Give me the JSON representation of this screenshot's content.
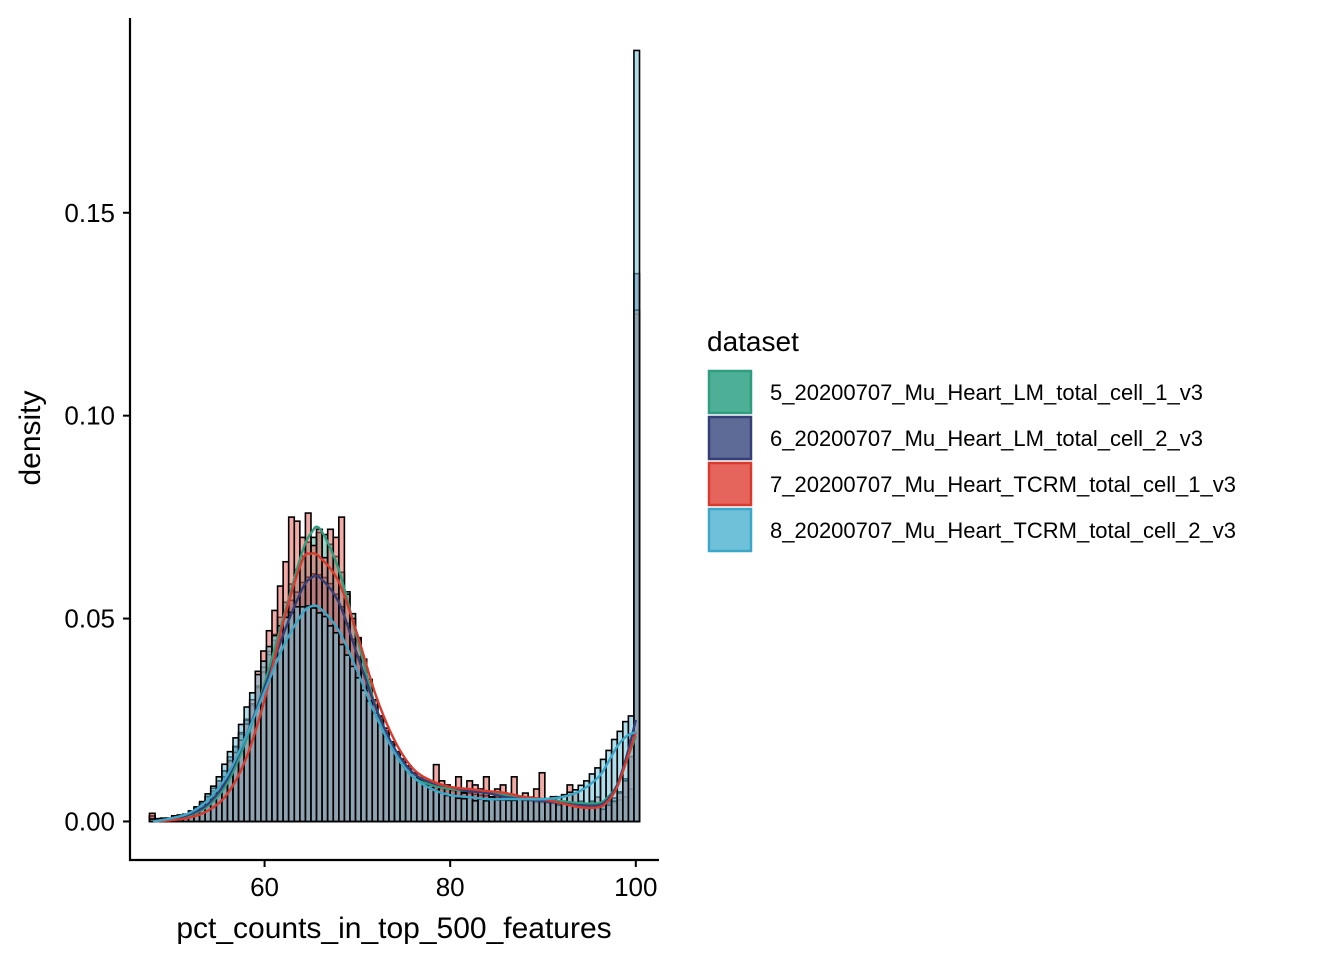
{
  "chart_data": {
    "type": "histogram",
    "title": "",
    "xlabel": "pct_counts_in_top_500_features",
    "ylabel": "density",
    "xlim": [
      45.5,
      102.5
    ],
    "ylim": [
      -0.0095,
      0.198
    ],
    "grid": false,
    "x_ticks": [
      60,
      80,
      100
    ],
    "x_tick_labels": [
      "60",
      "80",
      "100"
    ],
    "y_ticks": [
      0.0,
      0.05,
      0.1,
      0.15
    ],
    "y_tick_labels": [
      "0.00",
      "0.05",
      "0.10",
      "0.15"
    ],
    "legend": {
      "title": "dataset",
      "position": "right"
    },
    "bin_edges": [
      47.6,
      48.2,
      48.8,
      49.4,
      50.0,
      50.6,
      51.2,
      51.8,
      52.4,
      53.0,
      53.6,
      54.2,
      54.8,
      55.4,
      56.0,
      56.6,
      57.2,
      57.8,
      58.4,
      59.0,
      59.6,
      60.2,
      60.8,
      61.4,
      62.0,
      62.6,
      63.2,
      63.8,
      64.4,
      65.0,
      65.6,
      66.2,
      66.8,
      67.4,
      68.0,
      68.6,
      69.2,
      69.8,
      70.4,
      71.0,
      71.6,
      72.2,
      72.8,
      73.4,
      74.0,
      74.6,
      75.2,
      75.8,
      76.4,
      77.0,
      77.6,
      78.2,
      78.8,
      79.4,
      80.0,
      80.6,
      81.2,
      81.8,
      82.4,
      83.0,
      83.6,
      84.2,
      84.8,
      85.4,
      86.0,
      86.6,
      87.2,
      87.8,
      88.4,
      89.0,
      89.6,
      90.2,
      90.8,
      91.4,
      92.0,
      92.6,
      93.2,
      93.8,
      94.4,
      95.0,
      95.6,
      96.2,
      96.8,
      97.4,
      98.0,
      98.6,
      99.2,
      99.8,
      100.4
    ],
    "series": [
      {
        "name": "5_20200707_Mu_Heart_LM_total_cell_1_v3",
        "color": "#4DAF96",
        "line_color": "#2E9E7E",
        "densities": [
          0.0014,
          0.0006,
          0.0006,
          0.0006,
          0.0012,
          0.0015,
          0.0016,
          0.0023,
          0.0032,
          0.0043,
          0.006,
          0.0075,
          0.0099,
          0.0125,
          0.0147,
          0.0183,
          0.0215,
          0.0252,
          0.0286,
          0.0334,
          0.038,
          0.0419,
          0.0461,
          0.0503,
          0.054,
          0.0585,
          0.0621,
          0.0654,
          0.0688,
          0.07,
          0.0712,
          0.0707,
          0.0683,
          0.0653,
          0.0614,
          0.0566,
          0.0512,
          0.0453,
          0.0398,
          0.0343,
          0.0297,
          0.0256,
          0.0224,
          0.0191,
          0.0166,
          0.0146,
          0.0129,
          0.0114,
          0.0102,
          0.0096,
          0.0089,
          0.0085,
          0.0081,
          0.008,
          0.0077,
          0.0076,
          0.0072,
          0.0069,
          0.0067,
          0.0065,
          0.0064,
          0.0061,
          0.006,
          0.006,
          0.0055,
          0.0057,
          0.0054,
          0.0056,
          0.0056,
          0.0052,
          0.005,
          0.0051,
          0.005,
          0.005,
          0.0047,
          0.0045,
          0.0046,
          0.0041,
          0.0044,
          0.0047,
          0.0046,
          0.0045,
          0.0045,
          0.0048,
          0.0053,
          0.006,
          0.008,
          0.125
        ],
        "curve_x": [
          48,
          50,
          52,
          54,
          56,
          58,
          60,
          62,
          64,
          65,
          66,
          68,
          70,
          72,
          74,
          76,
          78,
          80,
          82,
          84,
          86,
          88,
          90,
          92,
          94,
          96,
          97,
          98,
          99,
          100
        ],
        "curve_y": [
          0.0,
          0.0005,
          0.0016,
          0.004,
          0.0095,
          0.02,
          0.034,
          0.05,
          0.066,
          0.071,
          0.072,
          0.062,
          0.045,
          0.028,
          0.017,
          0.011,
          0.009,
          0.008,
          0.0075,
          0.007,
          0.0065,
          0.006,
          0.0055,
          0.005,
          0.0045,
          0.0045,
          0.006,
          0.009,
          0.015,
          0.021
        ]
      },
      {
        "name": "6_20200707_Mu_Heart_LM_total_cell_2_v3",
        "color": "#5E6B96",
        "line_color": "#343F77",
        "densities": [
          0.0013,
          0.0006,
          0.0008,
          0.0008,
          0.0013,
          0.0015,
          0.0016,
          0.0024,
          0.0033,
          0.0045,
          0.0062,
          0.0082,
          0.01,
          0.0124,
          0.0159,
          0.0185,
          0.0219,
          0.0249,
          0.029,
          0.033,
          0.0368,
          0.0411,
          0.0446,
          0.048,
          0.0517,
          0.0545,
          0.0565,
          0.0589,
          0.0602,
          0.061,
          0.0608,
          0.0601,
          0.0586,
          0.056,
          0.0529,
          0.0488,
          0.0449,
          0.0406,
          0.0365,
          0.0322,
          0.0287,
          0.0251,
          0.022,
          0.0191,
          0.017,
          0.0149,
          0.0134,
          0.0117,
          0.0107,
          0.0099,
          0.0091,
          0.0089,
          0.0085,
          0.008,
          0.0076,
          0.0077,
          0.0072,
          0.0071,
          0.0067,
          0.0064,
          0.0063,
          0.006,
          0.0056,
          0.0058,
          0.0053,
          0.0054,
          0.0055,
          0.0051,
          0.005,
          0.0047,
          0.0046,
          0.0045,
          0.0044,
          0.0042,
          0.0044,
          0.0039,
          0.0042,
          0.0041,
          0.0038,
          0.0038,
          0.004,
          0.0044,
          0.005,
          0.0058,
          0.0073,
          0.0105,
          0.016,
          0.135
        ],
        "curve_x": [
          48,
          50,
          52,
          54,
          56,
          58,
          60,
          62,
          64,
          65,
          66,
          68,
          70,
          72,
          74,
          76,
          78,
          80,
          82,
          84,
          86,
          88,
          90,
          92,
          94,
          96,
          97,
          98,
          99,
          100
        ],
        "curve_y": [
          0.0,
          0.0006,
          0.0018,
          0.0045,
          0.0105,
          0.021,
          0.033,
          0.046,
          0.057,
          0.06,
          0.06,
          0.054,
          0.041,
          0.028,
          0.018,
          0.012,
          0.0095,
          0.0085,
          0.0075,
          0.007,
          0.006,
          0.0055,
          0.005,
          0.0045,
          0.004,
          0.004,
          0.0055,
          0.009,
          0.016,
          0.025
        ]
      },
      {
        "name": "7_20200707_Mu_Heart_TCRM_total_cell_1_v3",
        "color": "#E5645B",
        "line_color": "#D93A2E",
        "densities": [
          0.002,
          0.0,
          0.0,
          0.0,
          0.0006,
          0.0,
          0.001,
          0.0016,
          0.002,
          0.003,
          0.004,
          0.006,
          0.01,
          0.011,
          0.015,
          0.017,
          0.02,
          0.024,
          0.03,
          0.037,
          0.042,
          0.047,
          0.052,
          0.058,
          0.064,
          0.075,
          0.074,
          0.07,
          0.076,
          0.068,
          0.072,
          0.065,
          0.072,
          0.07,
          0.075,
          0.056,
          0.05,
          0.045,
          0.04,
          0.035,
          0.03,
          0.026,
          0.023,
          0.019,
          0.017,
          0.015,
          0.013,
          0.012,
          0.01,
          0.009,
          0.008,
          0.014,
          0.01,
          0.009,
          0.008,
          0.011,
          0.007,
          0.01,
          0.009,
          0.008,
          0.011,
          0.006,
          0.008,
          0.009,
          0.006,
          0.011,
          0.006,
          0.007,
          0.006,
          0.008,
          0.012,
          0.005,
          0.006,
          0.004,
          0.005,
          0.009,
          0.007,
          0.005,
          0.004,
          0.005,
          0.006,
          0.003,
          0.004,
          0.005,
          0.007,
          0.01,
          0.02,
          0.126
        ],
        "curve_x": [
          48,
          50,
          52,
          54,
          56,
          58,
          60,
          62,
          64,
          65,
          66,
          68,
          70,
          72,
          74,
          76,
          78,
          80,
          82,
          84,
          86,
          88,
          90,
          92,
          94,
          96,
          97,
          98,
          99,
          100
        ],
        "curve_y": [
          0.0,
          0.0003,
          0.001,
          0.0028,
          0.0068,
          0.0155,
          0.03,
          0.049,
          0.064,
          0.066,
          0.065,
          0.059,
          0.046,
          0.031,
          0.02,
          0.013,
          0.01,
          0.0085,
          0.008,
          0.0075,
          0.007,
          0.006,
          0.0055,
          0.0045,
          0.0035,
          0.0035,
          0.005,
          0.0085,
          0.015,
          0.022
        ]
      },
      {
        "name": "8_20200707_Mu_Heart_TCRM_total_cell_2_v3",
        "color": "#6EC1D9",
        "line_color": "#3DA7C9",
        "densities": [
          0.0006,
          0.0007,
          0.0008,
          0.0008,
          0.0014,
          0.0016,
          0.0018,
          0.0026,
          0.0036,
          0.0049,
          0.0068,
          0.0087,
          0.011,
          0.0141,
          0.0172,
          0.0206,
          0.0239,
          0.0282,
          0.0317,
          0.0362,
          0.0395,
          0.0431,
          0.0458,
          0.0482,
          0.0503,
          0.0515,
          0.0529,
          0.0529,
          0.0531,
          0.0526,
          0.0514,
          0.0505,
          0.0482,
          0.0465,
          0.0436,
          0.041,
          0.0382,
          0.0354,
          0.0323,
          0.0297,
          0.0267,
          0.0246,
          0.0217,
          0.0196,
          0.0172,
          0.0154,
          0.0137,
          0.012,
          0.0103,
          0.0092,
          0.0082,
          0.0077,
          0.007,
          0.0064,
          0.0064,
          0.0057,
          0.0056,
          0.0059,
          0.0051,
          0.0055,
          0.0051,
          0.0054,
          0.0053,
          0.0053,
          0.0052,
          0.0052,
          0.0054,
          0.0053,
          0.0054,
          0.0053,
          0.0055,
          0.0056,
          0.0061,
          0.0061,
          0.0066,
          0.0072,
          0.0078,
          0.0089,
          0.01,
          0.0117,
          0.0132,
          0.0153,
          0.0175,
          0.0202,
          0.0222,
          0.0246,
          0.026,
          0.19
        ],
        "curve_x": [
          48,
          50,
          52,
          54,
          56,
          58,
          60,
          62,
          64,
          65,
          66,
          68,
          70,
          72,
          74,
          76,
          78,
          80,
          82,
          84,
          86,
          88,
          90,
          92,
          94,
          96,
          97,
          98,
          99,
          100
        ],
        "curve_y": [
          0.0,
          0.0008,
          0.0022,
          0.0055,
          0.0115,
          0.021,
          0.032,
          0.043,
          0.051,
          0.053,
          0.0525,
          0.047,
          0.037,
          0.026,
          0.017,
          0.011,
          0.008,
          0.0065,
          0.006,
          0.0055,
          0.0055,
          0.0055,
          0.0055,
          0.006,
          0.0075,
          0.011,
          0.0145,
          0.0185,
          0.021,
          0.022
        ]
      }
    ]
  }
}
